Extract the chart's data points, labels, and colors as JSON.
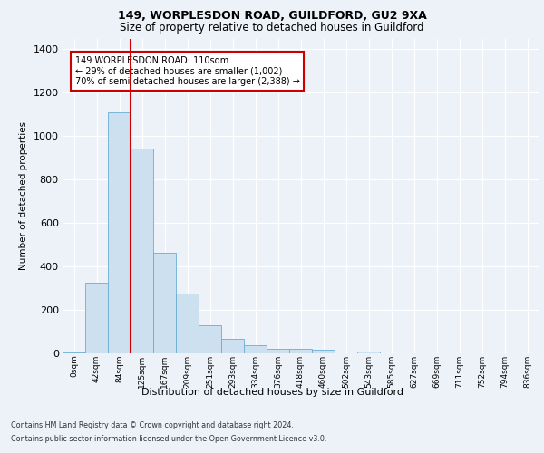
{
  "title1": "149, WORPLESDON ROAD, GUILDFORD, GU2 9XA",
  "title2": "Size of property relative to detached houses in Guildford",
  "xlabel": "Distribution of detached houses by size in Guildford",
  "ylabel": "Number of detached properties",
  "footnote1": "Contains HM Land Registry data © Crown copyright and database right 2024.",
  "footnote2": "Contains public sector information licensed under the Open Government Licence v3.0.",
  "annotation_line1": "149 WORPLESDON ROAD: 110sqm",
  "annotation_line2": "← 29% of detached houses are smaller (1,002)",
  "annotation_line3": "70% of semi-detached houses are larger (2,388) →",
  "bar_color": "#cce0f0",
  "bar_edge_color": "#6aaed6",
  "vline_color": "#cc0000",
  "categories": [
    "0sqm",
    "42sqm",
    "84sqm",
    "125sqm",
    "167sqm",
    "209sqm",
    "251sqm",
    "293sqm",
    "334sqm",
    "376sqm",
    "418sqm",
    "460sqm",
    "502sqm",
    "543sqm",
    "585sqm",
    "627sqm",
    "669sqm",
    "711sqm",
    "752sqm",
    "794sqm",
    "836sqm"
  ],
  "values": [
    5,
    325,
    1110,
    945,
    465,
    275,
    130,
    65,
    38,
    22,
    22,
    17,
    2,
    10,
    0,
    0,
    0,
    0,
    0,
    0,
    0
  ],
  "ylim": [
    0,
    1450
  ],
  "yticks": [
    0,
    200,
    400,
    600,
    800,
    1000,
    1200,
    1400
  ],
  "background_color": "#edf2f9",
  "plot_bg_color": "#edf2f9",
  "grid_color": "#ffffff",
  "title1_fontsize": 9,
  "title2_fontsize": 8.5
}
